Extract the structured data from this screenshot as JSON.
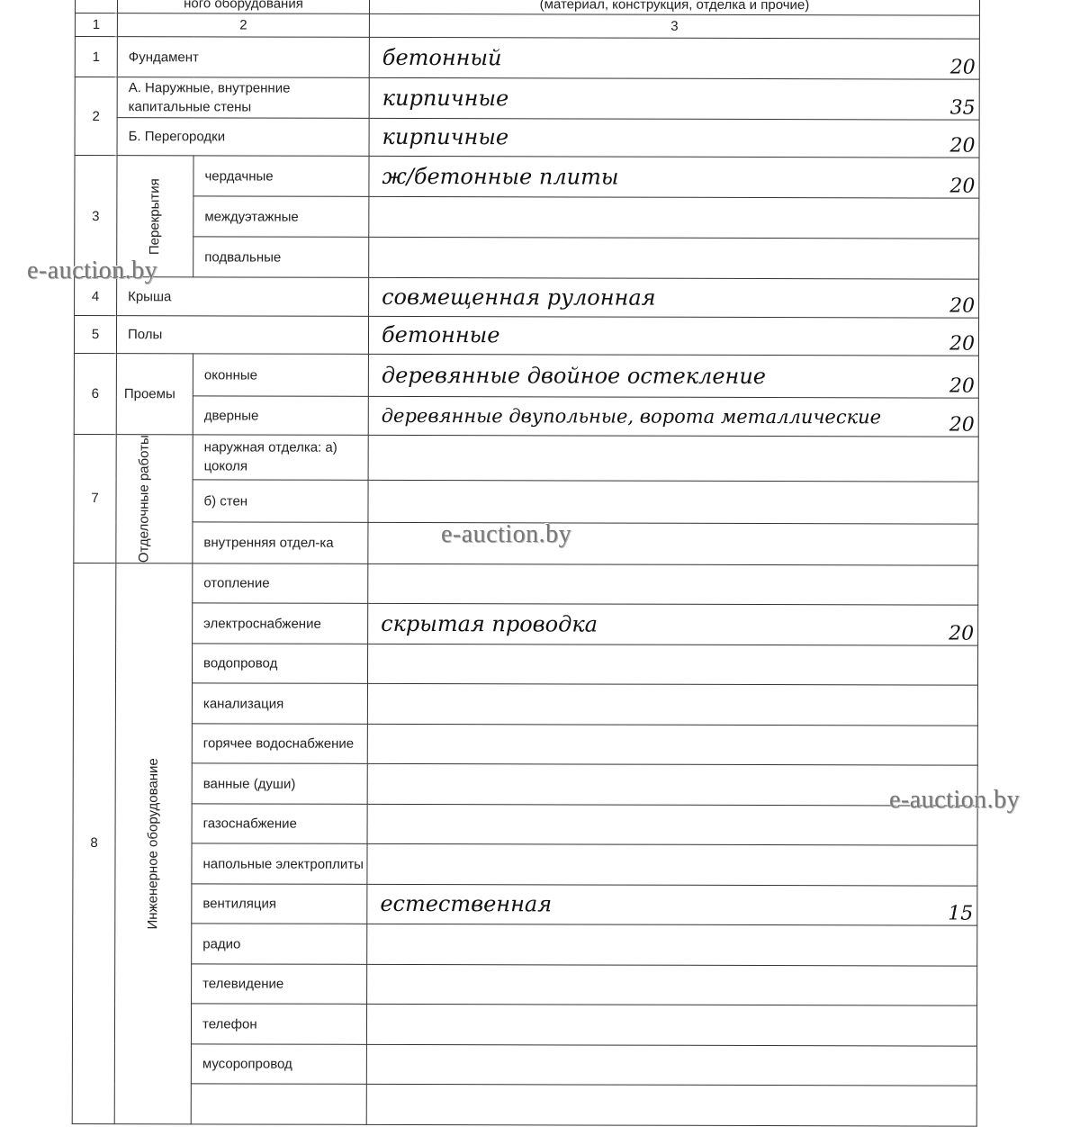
{
  "header": {
    "col2": "ного оборудования",
    "col3": "(материал, конструкция, отделка и прочие)",
    "n1": "1",
    "n2": "2",
    "n3": "3"
  },
  "r1": {
    "n": "1",
    "label": "Фундамент",
    "hw": "бетонный",
    "v": "20"
  },
  "r2": {
    "n": "2",
    "a": "А. Наружные, внутренние капитальные стены",
    "a_hw": "кирпичные",
    "a_v": "35",
    "b": "Б. Перегородки",
    "b_hw": "кирпичные",
    "b_v": "20"
  },
  "r3": {
    "n": "3",
    "group": "Перекрытия",
    "a": "чердачные",
    "a_hw": "ж/бетонные плиты",
    "a_v": "20",
    "b": "междуэтажные",
    "c": "подвальные"
  },
  "r4": {
    "n": "4",
    "label": "Крыша",
    "hw": "совмещенная рулонная",
    "v": "20"
  },
  "r5": {
    "n": "5",
    "label": "Полы",
    "hw": "бетонные",
    "v": "20"
  },
  "r6": {
    "n": "6",
    "group": "Проемы",
    "a": "оконные",
    "a_hw": "деревянные двойное остекление",
    "a_v": "20",
    "b": "дверные",
    "b_hw": "деревянные двупольные, ворота металлические",
    "b_v": "20"
  },
  "r7": {
    "n": "7",
    "group": "Отделочные работы",
    "a": "наружная отделка: а) цоколя",
    "b": "б) стен",
    "c": "внутренняя отдел-ка"
  },
  "r8": {
    "n": "8",
    "group": "Инженерное оборудование",
    "items": [
      {
        "label": "отопление",
        "hw": "",
        "v": ""
      },
      {
        "label": "электроснабжение",
        "hw": "скрытая проводка",
        "v": "20"
      },
      {
        "label": "водопровод",
        "hw": "",
        "v": ""
      },
      {
        "label": "канализация",
        "hw": "",
        "v": ""
      },
      {
        "label": "горячее водоснабжение",
        "hw": "",
        "v": ""
      },
      {
        "label": "ванные (души)",
        "hw": "",
        "v": ""
      },
      {
        "label": "газоснабжение",
        "hw": "",
        "v": ""
      },
      {
        "label": "напольные электроплиты",
        "hw": "",
        "v": ""
      },
      {
        "label": "вентиляция",
        "hw": "естественная",
        "v": "15"
      },
      {
        "label": "радио",
        "hw": "",
        "v": ""
      },
      {
        "label": "телевидение",
        "hw": "",
        "v": ""
      },
      {
        "label": "телефон",
        "hw": "",
        "v": ""
      },
      {
        "label": "мусоропровод",
        "hw": "",
        "v": ""
      },
      {
        "label": "",
        "hw": "",
        "v": ""
      }
    ]
  },
  "watermark": "e-auction.by"
}
